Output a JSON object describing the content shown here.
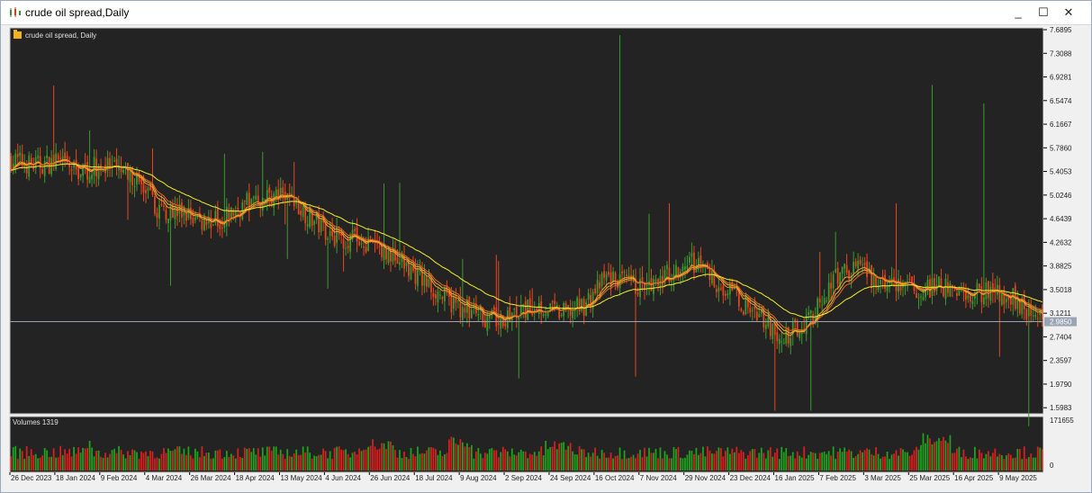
{
  "window": {
    "title": "crude oil spread,Daily",
    "minimize_label": "_",
    "maximize_label": "☐",
    "close_label": "✕"
  },
  "chart_data": {
    "type": "candlestick",
    "title": "crude oil spread, Daily",
    "symbol_icon": "folder-icon",
    "current_price": "2.9850",
    "price_axis_ticks": [
      "7.6895",
      "7.3088",
      "6.9281",
      "6.5474",
      "6.1667",
      "5.7860",
      "5.4053",
      "5.0246",
      "4.6439",
      "4.2632",
      "3.8825",
      "3.5018",
      "3.1211",
      "2.7404",
      "2.3597",
      "1.9790",
      "1.5983"
    ],
    "ylim": [
      1.5,
      7.6895
    ],
    "volume_panel_label": "Volumes 1319",
    "volume_axis_ticks": [
      "171655",
      "0"
    ],
    "volume_max": 171655,
    "date_labels": [
      "26 Dec 2023",
      "18 Jan 2024",
      "9 Feb 2024",
      "4 Mar 2024",
      "26 Mar 2024",
      "18 Apr 2024",
      "13 May 2024",
      "4 Jun 2024",
      "26 Jun 2024",
      "18 Jul 2024",
      "9 Aug 2024",
      "2 Sep 2024",
      "24 Sep 2024",
      "16 Oct 2024",
      "7 Nov 2024",
      "29 Nov 2024",
      "23 Dec 2024",
      "16 Jan 2025",
      "7 Feb 2025",
      "3 Mar 2025",
      "25 Mar 2025",
      "16 Apr 2025",
      "9 May 2025"
    ],
    "close_trend": [
      [
        0,
        5.6
      ],
      [
        10,
        5.5
      ],
      [
        20,
        5.55
      ],
      [
        30,
        5.4
      ],
      [
        40,
        5.5
      ],
      [
        55,
        5.3
      ],
      [
        65,
        4.8
      ],
      [
        75,
        4.75
      ],
      [
        85,
        4.6
      ],
      [
        95,
        4.65
      ],
      [
        105,
        4.9
      ],
      [
        115,
        5.0
      ],
      [
        125,
        4.95
      ],
      [
        135,
        4.6
      ],
      [
        145,
        4.35
      ],
      [
        155,
        4.3
      ],
      [
        165,
        4.15
      ],
      [
        175,
        3.9
      ],
      [
        185,
        3.6
      ],
      [
        195,
        3.3
      ],
      [
        205,
        3.15
      ],
      [
        215,
        3.0
      ],
      [
        225,
        3.1
      ],
      [
        235,
        3.25
      ],
      [
        245,
        3.1
      ],
      [
        255,
        3.25
      ],
      [
        265,
        3.7
      ],
      [
        275,
        3.6
      ],
      [
        285,
        3.5
      ],
      [
        295,
        3.85
      ],
      [
        305,
        3.95
      ],
      [
        315,
        3.6
      ],
      [
        325,
        3.3
      ],
      [
        335,
        3.05
      ],
      [
        342,
        2.6
      ],
      [
        350,
        2.9
      ],
      [
        358,
        3.15
      ],
      [
        365,
        3.6
      ],
      [
        375,
        3.9
      ],
      [
        385,
        3.6
      ],
      [
        395,
        3.55
      ],
      [
        405,
        3.5
      ],
      [
        415,
        3.55
      ],
      [
        425,
        3.4
      ],
      [
        435,
        3.5
      ],
      [
        445,
        3.4
      ],
      [
        455,
        3.1
      ],
      [
        459,
        3.0
      ]
    ],
    "moving_averages": [
      {
        "color": "#ff9a1f",
        "period": "fast"
      },
      {
        "color": "#e4b43a",
        "period": "mid"
      },
      {
        "color": "#e8641e",
        "period": "mid2"
      },
      {
        "color": "#f4ef2a",
        "period": "slow"
      }
    ],
    "up_color": "#3c9b2e",
    "down_color": "#e8471c",
    "volume_up_color": "#1ea51e",
    "volume_down_color": "#dd1e1e",
    "grid": false,
    "background": "#232323"
  }
}
